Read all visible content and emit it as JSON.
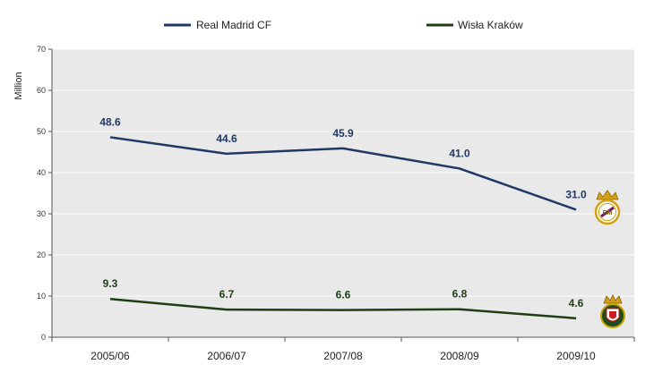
{
  "chart_data": {
    "type": "line",
    "categories": [
      "2005/06",
      "2006/07",
      "2007/08",
      "2008/09",
      "2009/10"
    ],
    "series": [
      {
        "name": "Real Madrid CF",
        "values": [
          48.6,
          44.6,
          45.9,
          41.0,
          31.0
        ],
        "labels": [
          "48.6",
          "44.6",
          "45.9",
          "41.0",
          "31.0"
        ],
        "color": "#1f3864",
        "badge": "real-madrid-crest-icon"
      },
      {
        "name": "Wisła Kraków",
        "values": [
          9.3,
          6.7,
          6.6,
          6.8,
          4.6
        ],
        "labels": [
          "9.3",
          "6.7",
          "6.6",
          "6.8",
          "4.6"
        ],
        "color": "#1e3d14",
        "badge": "wisla-krakow-crest-icon"
      }
    ],
    "ylabel": "Million",
    "ylim": [
      0,
      70
    ],
    "yticks": [
      "0",
      "10",
      "20",
      "30",
      "40",
      "50",
      "60",
      "70"
    ],
    "grid": true,
    "legend_position": "top"
  }
}
